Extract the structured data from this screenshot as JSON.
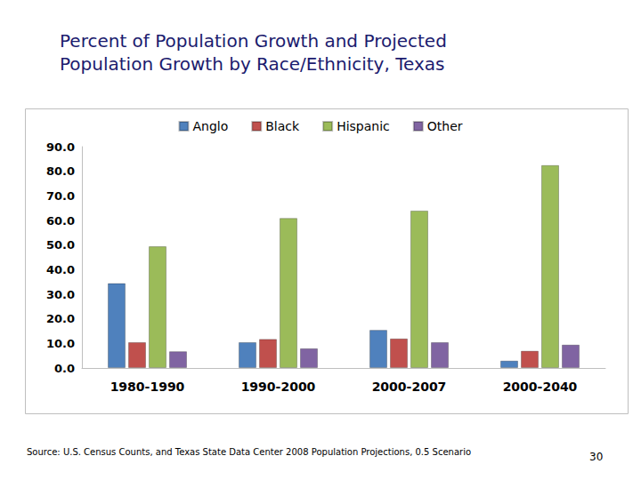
{
  "chart_data": {
    "type": "bar",
    "title": "Percent of Population Growth and Projected Population Growth by Race/Ethnicity, Texas",
    "categories": [
      "1980-1990",
      "1990-2000",
      "2000-2007",
      "2000-2040"
    ],
    "series": [
      {
        "name": "Anglo",
        "color": "#4f81bd",
        "values": [
          34.5,
          10.5,
          15.5,
          3.0
        ]
      },
      {
        "name": "Black",
        "color": "#c0504d",
        "values": [
          10.5,
          11.8,
          12.0,
          7.0
        ]
      },
      {
        "name": "Hispanic",
        "color": "#9bbb59",
        "values": [
          49.5,
          61.0,
          64.0,
          82.5
        ]
      },
      {
        "name": "Other",
        "color": "#8064a2",
        "values": [
          6.8,
          8.0,
          10.5,
          9.5
        ]
      }
    ],
    "ylim": [
      0,
      90
    ],
    "yticks": [
      {
        "value": 0,
        "label": "0.0"
      },
      {
        "value": 10,
        "label": "10.0"
      },
      {
        "value": 20,
        "label": "20.0"
      },
      {
        "value": 30,
        "label": "30.0"
      },
      {
        "value": 40,
        "label": "40.0"
      },
      {
        "value": 50,
        "label": "50.0"
      },
      {
        "value": 60,
        "label": "60.0"
      },
      {
        "value": 70,
        "label": "70.0"
      },
      {
        "value": 80,
        "label": "80.0"
      },
      {
        "value": 90,
        "label": "90.0"
      }
    ],
    "grid": false,
    "legend": "top"
  },
  "footer": {
    "source": "Source: U.S. Census Counts, and Texas State Data Center 2008 Population Projections, 0.5 Scenario",
    "page_number": "30"
  }
}
